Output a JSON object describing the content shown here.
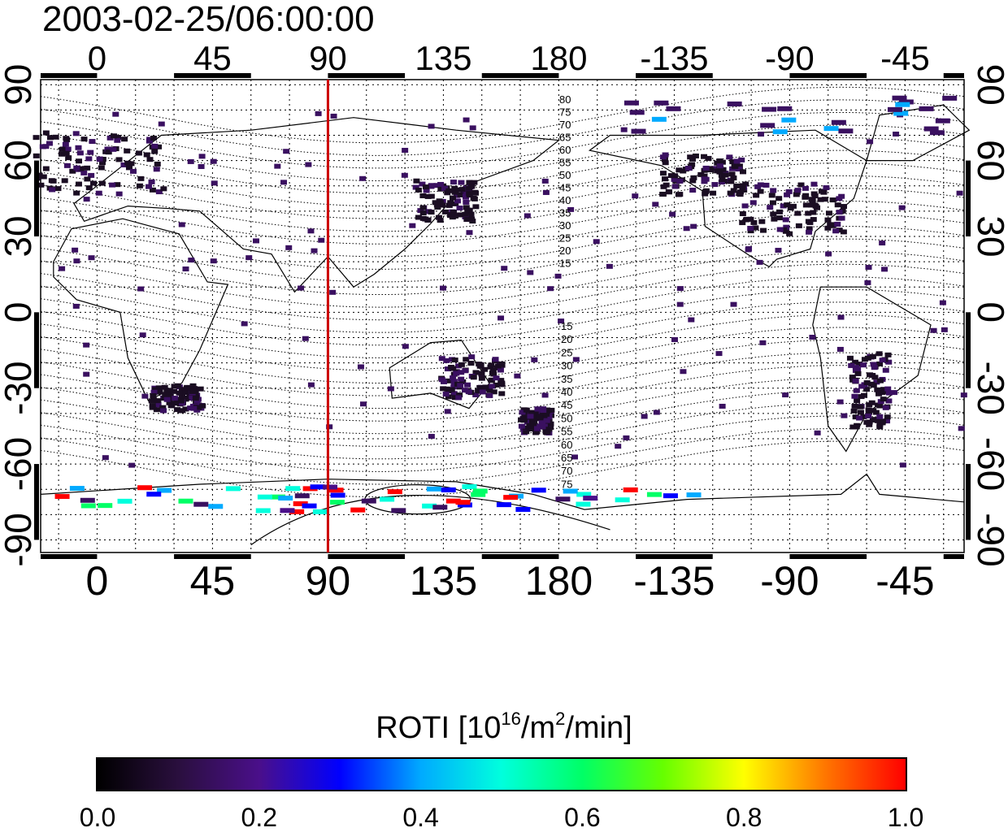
{
  "timestamp": "2003-02-25/06:00:00",
  "map": {
    "lon_ticks": [
      "0",
      "45",
      "90",
      "135",
      "180",
      "-135",
      "-90",
      "-45"
    ],
    "lon_tick_values": [
      0,
      45,
      90,
      135,
      180,
      225,
      270,
      315
    ],
    "lat_ticks": [
      "90",
      "60",
      "30",
      "0",
      "-30",
      "-60",
      "-90"
    ],
    "lat_tick_values": [
      90,
      60,
      30,
      0,
      -30,
      -60,
      -90
    ],
    "lon_range": [
      -22,
      338
    ],
    "lat_range": [
      -95,
      92
    ],
    "marker_longitude": 90,
    "marker_color": "#cc0000",
    "contour_labels_north": [
      "80",
      "75",
      "70",
      "65",
      "60",
      "55",
      "50",
      "45",
      "40",
      "35",
      "30",
      "25",
      "20",
      "15"
    ],
    "contour_labels_south": [
      "15",
      "20",
      "25",
      "30",
      "35",
      "40",
      "45",
      "50",
      "55",
      "60",
      "65",
      "70",
      "75"
    ]
  },
  "colorbar": {
    "title_prefix": "ROTI  [10",
    "title_sup1": "16",
    "title_mid": "/m",
    "title_sup2": "2",
    "title_suffix": "/min]",
    "labels": [
      "0.0",
      "0.2",
      "0.4",
      "0.6",
      "0.8",
      "1.0"
    ],
    "label_values": [
      0.0,
      0.2,
      0.4,
      0.6,
      0.8,
      1.0
    ],
    "colors": [
      "#000000",
      "#2a0f3e",
      "#4a0f8a",
      "#0000ff",
      "#00aaff",
      "#00ffdd",
      "#00ff66",
      "#66ff00",
      "#ffff00",
      "#ff7700",
      "#ff0000"
    ]
  }
}
